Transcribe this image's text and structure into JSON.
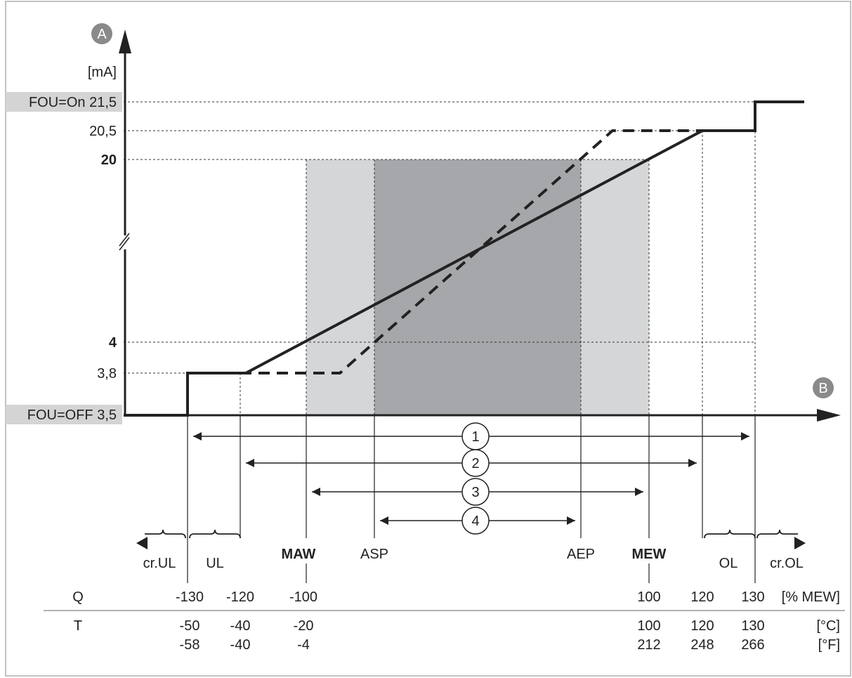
{
  "axes": {
    "y_marker": "A",
    "x_marker": "B",
    "y_unit": "[mA]"
  },
  "y_levels": [
    {
      "id": "fou-on",
      "label": "FOU=On 21,5",
      "boxed": true,
      "bold": false
    },
    {
      "id": "y-20-5",
      "label": "20,5",
      "boxed": false,
      "bold": false
    },
    {
      "id": "y-20",
      "label": "20",
      "boxed": false,
      "bold": true
    },
    {
      "id": "y-4",
      "label": "4",
      "boxed": false,
      "bold": true
    },
    {
      "id": "y-3-8",
      "label": "3,8",
      "boxed": false,
      "bold": false
    },
    {
      "id": "fou-off",
      "label": "FOU=OFF 3,5",
      "boxed": true,
      "bold": false
    }
  ],
  "ranges": [
    {
      "id": "range-1",
      "label": "1"
    },
    {
      "id": "range-2",
      "label": "2"
    },
    {
      "id": "range-3",
      "label": "3"
    },
    {
      "id": "range-4",
      "label": "4"
    }
  ],
  "zones": [
    {
      "id": "zone-cr-ul",
      "label": "cr.UL"
    },
    {
      "id": "zone-ul",
      "label": "UL"
    },
    {
      "id": "zone-maw",
      "label": "MAW",
      "bold": true
    },
    {
      "id": "zone-asp",
      "label": "ASP"
    },
    {
      "id": "zone-aep",
      "label": "AEP"
    },
    {
      "id": "zone-mew",
      "label": "MEW",
      "bold": true
    },
    {
      "id": "zone-ol",
      "label": "OL"
    },
    {
      "id": "zone-cr-ol",
      "label": "cr.OL"
    }
  ],
  "table": {
    "q_label": "Q",
    "t_label": "T",
    "q_values": [
      "-130",
      "-120",
      "-100",
      "100",
      "120",
      "130"
    ],
    "q_unit": "[% MEW]",
    "c_values": [
      "-50",
      "-40",
      "-20",
      "100",
      "120",
      "130"
    ],
    "c_unit": "[°C]",
    "f_values": [
      "-58",
      "-40",
      "-4",
      "212",
      "248",
      "266"
    ],
    "f_unit": "[°F]"
  },
  "colors": {
    "light_band": "#d5d6d8",
    "dark_band": "#a6a7aa",
    "label_box": "#d4d4d4",
    "marker": "#8a8a8a",
    "line": "#222222"
  }
}
